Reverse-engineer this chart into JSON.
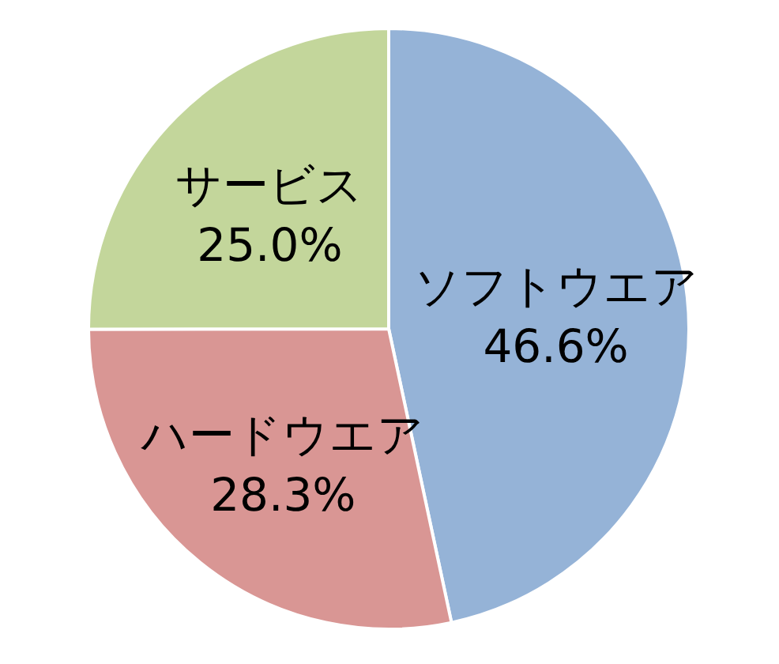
{
  "chart_data": {
    "type": "pie",
    "categories": [
      "ソフトウエア",
      "ハードウエア",
      "サービス"
    ],
    "values": [
      46.6,
      28.3,
      25.0
    ],
    "colors": [
      "#95b3d7",
      "#d99694",
      "#c3d69b"
    ],
    "value_labels": [
      "46.6%",
      "28.3%",
      "25.0%"
    ],
    "legend": false
  }
}
